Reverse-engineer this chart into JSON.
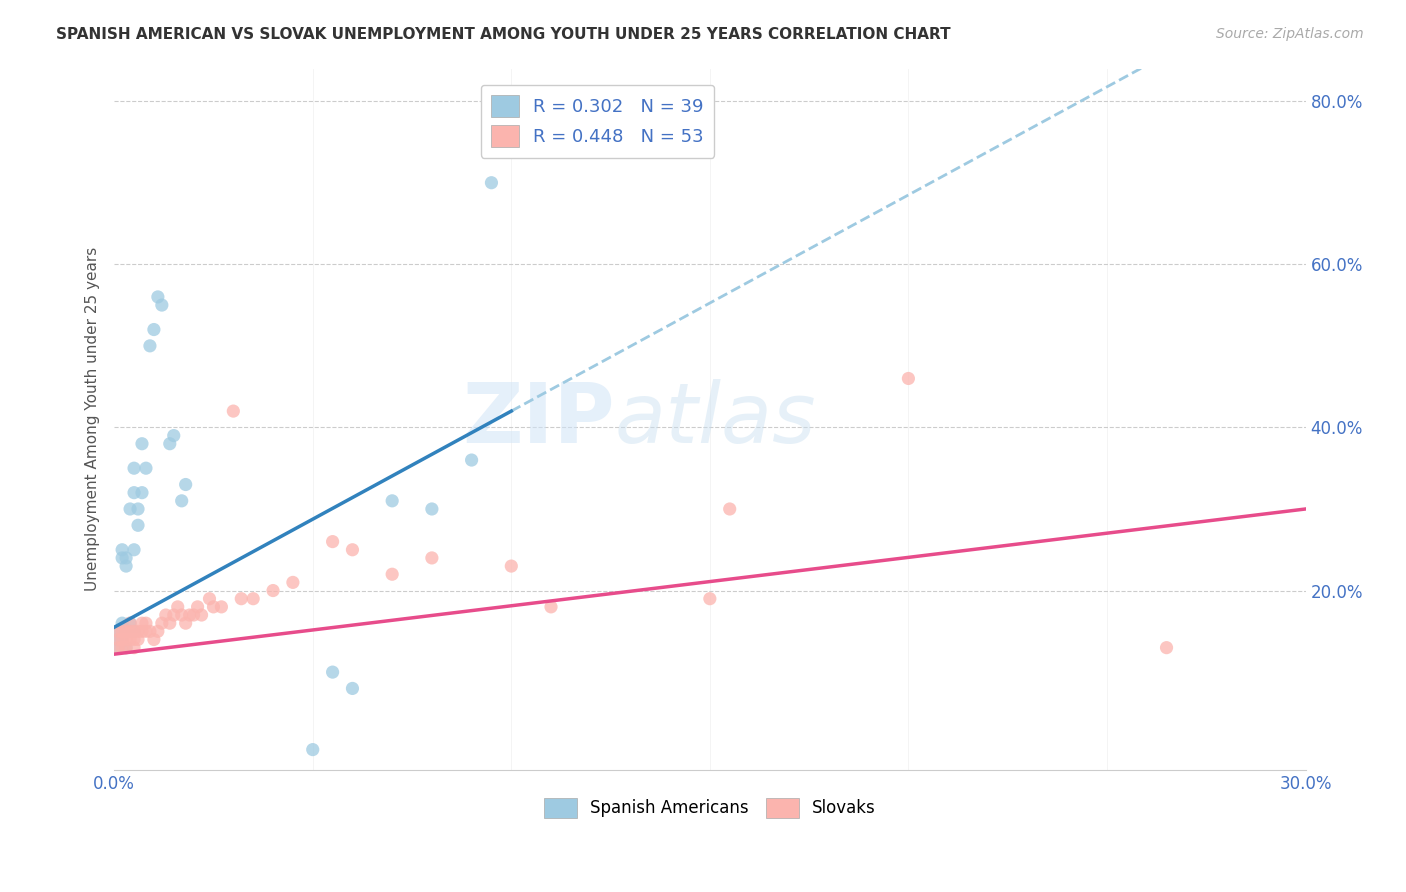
{
  "title": "SPANISH AMERICAN VS SLOVAK UNEMPLOYMENT AMONG YOUTH UNDER 25 YEARS CORRELATION CHART",
  "source": "Source: ZipAtlas.com",
  "ylabel": "Unemployment Among Youth under 25 years",
  "yticks": [
    0.0,
    0.2,
    0.4,
    0.6,
    0.8
  ],
  "ytick_labels": [
    "",
    "20.0%",
    "40.0%",
    "60.0%",
    "80.0%"
  ],
  "xlim": [
    0.0,
    0.3
  ],
  "ylim": [
    -0.02,
    0.84
  ],
  "spanish_R": 0.302,
  "spanish_N": 39,
  "slovak_R": 0.448,
  "slovak_N": 53,
  "spanish_scatter_color": "#9ecae1",
  "slovak_scatter_color": "#fbb4ae",
  "spanish_line_color": "#3182bd",
  "slovak_line_color": "#e74c8b",
  "dashed_line_color": "#9ecae1",
  "background_color": "#ffffff",
  "grid_color": "#cccccc",
  "spanish_line_x0": 0.0,
  "spanish_line_y0": 0.155,
  "spanish_line_x1": 0.1,
  "spanish_line_y1": 0.42,
  "slovak_line_x0": 0.0,
  "slovak_line_y0": 0.122,
  "slovak_line_x1": 0.3,
  "slovak_line_y1": 0.3,
  "spanish_x": [
    0.001,
    0.001,
    0.001,
    0.002,
    0.002,
    0.002,
    0.002,
    0.002,
    0.003,
    0.003,
    0.003,
    0.003,
    0.004,
    0.004,
    0.004,
    0.005,
    0.005,
    0.005,
    0.005,
    0.006,
    0.006,
    0.007,
    0.007,
    0.008,
    0.009,
    0.01,
    0.011,
    0.012,
    0.014,
    0.015,
    0.017,
    0.018,
    0.05,
    0.055,
    0.06,
    0.07,
    0.08,
    0.09,
    0.095
  ],
  "spanish_y": [
    0.13,
    0.14,
    0.15,
    0.14,
    0.15,
    0.16,
    0.24,
    0.25,
    0.13,
    0.15,
    0.23,
    0.24,
    0.15,
    0.16,
    0.3,
    0.15,
    0.25,
    0.32,
    0.35,
    0.28,
    0.3,
    0.32,
    0.38,
    0.35,
    0.5,
    0.52,
    0.56,
    0.55,
    0.38,
    0.39,
    0.31,
    0.33,
    0.005,
    0.1,
    0.08,
    0.31,
    0.3,
    0.36,
    0.7
  ],
  "slovak_x": [
    0.001,
    0.001,
    0.001,
    0.002,
    0.002,
    0.002,
    0.003,
    0.003,
    0.003,
    0.004,
    0.004,
    0.004,
    0.005,
    0.005,
    0.005,
    0.006,
    0.006,
    0.007,
    0.007,
    0.008,
    0.008,
    0.009,
    0.01,
    0.011,
    0.012,
    0.013,
    0.014,
    0.015,
    0.016,
    0.017,
    0.018,
    0.019,
    0.02,
    0.021,
    0.022,
    0.024,
    0.025,
    0.027,
    0.03,
    0.032,
    0.035,
    0.04,
    0.045,
    0.055,
    0.06,
    0.07,
    0.08,
    0.1,
    0.11,
    0.15,
    0.155,
    0.2,
    0.265
  ],
  "slovak_y": [
    0.13,
    0.14,
    0.15,
    0.13,
    0.14,
    0.15,
    0.13,
    0.14,
    0.15,
    0.14,
    0.15,
    0.16,
    0.13,
    0.14,
    0.15,
    0.14,
    0.15,
    0.15,
    0.16,
    0.15,
    0.16,
    0.15,
    0.14,
    0.15,
    0.16,
    0.17,
    0.16,
    0.17,
    0.18,
    0.17,
    0.16,
    0.17,
    0.17,
    0.18,
    0.17,
    0.19,
    0.18,
    0.18,
    0.42,
    0.19,
    0.19,
    0.2,
    0.21,
    0.26,
    0.25,
    0.22,
    0.24,
    0.23,
    0.18,
    0.19,
    0.3,
    0.46,
    0.13
  ]
}
